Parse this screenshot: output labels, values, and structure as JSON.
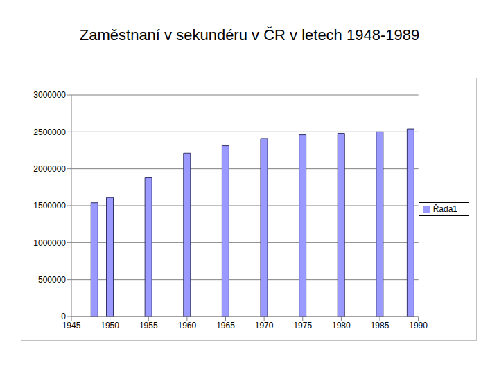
{
  "chart_data": {
    "type": "bar",
    "title": "Zaměstnaní v sekundéru v ČR v letech 1948-1989",
    "x": [
      1948,
      1950,
      1955,
      1960,
      1965,
      1970,
      1975,
      1980,
      1985,
      1989
    ],
    "series": [
      {
        "name": "Řada1",
        "color": "#9999ff",
        "values": [
          1540000,
          1610000,
          1880000,
          2210000,
          2310000,
          2410000,
          2460000,
          2480000,
          2500000,
          2540000
        ]
      }
    ],
    "xlim": [
      1945,
      1990
    ],
    "xticks": [
      1945,
      1950,
      1955,
      1960,
      1965,
      1970,
      1975,
      1980,
      1985,
      1990
    ],
    "ylim": [
      0,
      3000000
    ],
    "yticks": [
      0,
      500000,
      1000000,
      1500000,
      2000000,
      2500000,
      3000000
    ],
    "grid": true,
    "legend": "right"
  }
}
